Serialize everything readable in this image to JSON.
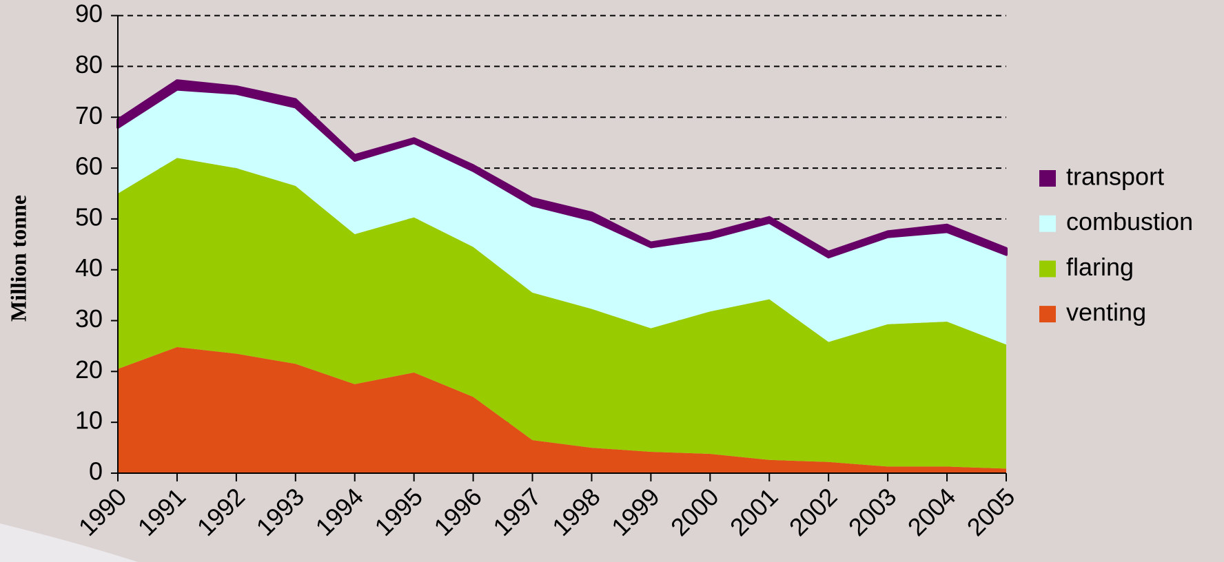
{
  "chart_data": {
    "type": "stacked-area",
    "y_label": "Million tonne",
    "x": [
      1990,
      1991,
      1992,
      1993,
      1994,
      1995,
      1996,
      1997,
      1998,
      1999,
      2000,
      2001,
      2002,
      2003,
      2004,
      2005
    ],
    "xlim": [
      1990,
      2005
    ],
    "xticks": [
      1990,
      1991,
      1992,
      1993,
      1994,
      1995,
      1996,
      1997,
      1998,
      1999,
      2000,
      2001,
      2002,
      2003,
      2004,
      2005
    ],
    "ylim": [
      0,
      90
    ],
    "yticks": [
      0,
      10,
      20,
      30,
      40,
      50,
      60,
      70,
      80,
      90
    ],
    "grid": true,
    "legend": "right",
    "series": [
      {
        "name": "venting",
        "color": "#e05016",
        "values": [
          20.5,
          24.8,
          23.5,
          21.5,
          17.5,
          19.8,
          15,
          6.5,
          5,
          4.2,
          3.8,
          2.6,
          2.2,
          1.3,
          1.3,
          0.9
        ]
      },
      {
        "name": "flaring",
        "color": "#99cc00",
        "values": [
          34.5,
          37.2,
          36.5,
          35,
          29.5,
          30.5,
          29.5,
          29,
          27.3,
          24.3,
          28,
          31.6,
          23.6,
          28,
          28.5,
          24.4
        ]
      },
      {
        "name": "combustion",
        "color": "#ccffff",
        "values": [
          13,
          13.5,
          14.7,
          15.5,
          14.5,
          14.7,
          15,
          17.2,
          17.5,
          16,
          14.4,
          15.1,
          16.7,
          17.2,
          17.7,
          17.7
        ]
      },
      {
        "name": "transport",
        "color": "#660066",
        "values": [
          1.5,
          1.7,
          1.3,
          1.5,
          1,
          0.8,
          1,
          1.3,
          1.4,
          0.8,
          1,
          1,
          1,
          1,
          1.3,
          1.2
        ]
      }
    ]
  }
}
